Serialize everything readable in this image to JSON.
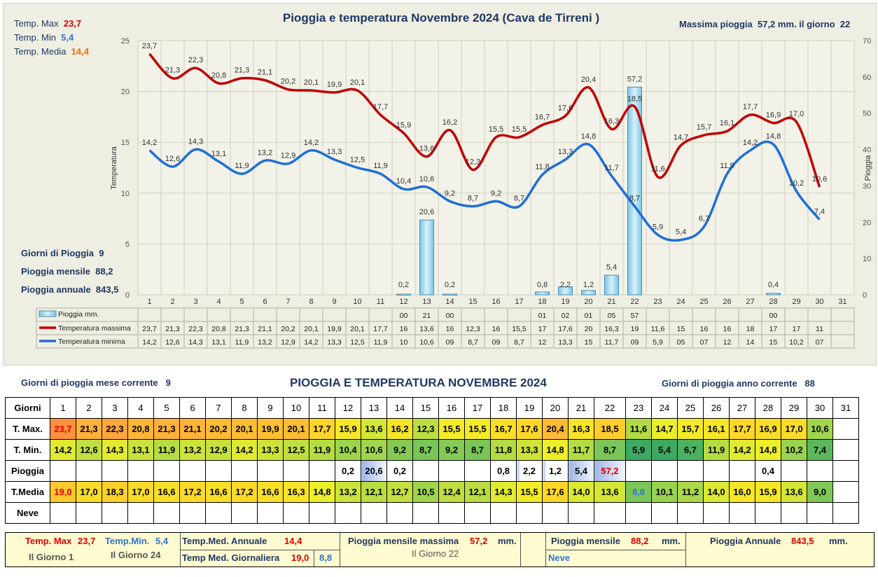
{
  "chart_title": "Pioggia e temperatura Novembre 2024 (Cava de Tirreni )",
  "top_right": {
    "label": "Massima pioggia",
    "value": "57,2 mm.",
    "day_label": "il giorno",
    "day": "22"
  },
  "temp_stats": [
    {
      "label": "Temp. Max",
      "value": "23,7"
    },
    {
      "label": "Temp. Min",
      "value": "5,4"
    },
    {
      "label": "Temp. Media",
      "value": "14,4"
    }
  ],
  "rain_stats": [
    {
      "label": "Giorni di Pioggia",
      "value": "9"
    },
    {
      "label": "Pioggia mensile",
      "value": "88,2"
    },
    {
      "label": "Pioggia annuale",
      "value": "843,5"
    }
  ],
  "chart_data": {
    "type": "line",
    "title": "Pioggia e temperatura Novembre 2024 (Cava de Tirreni )",
    "ylabel": "Temperatura",
    "y2label": "Pioggia",
    "ylim": [
      0,
      25
    ],
    "y2lim": [
      0,
      70
    ],
    "yticks": [
      "0",
      "5",
      "10",
      "15",
      "20",
      "25"
    ],
    "y2ticks": [
      "0",
      "10",
      "20",
      "30",
      "40",
      "50",
      "60",
      "70"
    ],
    "categories": [
      "1",
      "2",
      "3",
      "4",
      "5",
      "6",
      "7",
      "8",
      "9",
      "10",
      "11",
      "12",
      "13",
      "14",
      "15",
      "16",
      "17",
      "18",
      "19",
      "20",
      "21",
      "22",
      "23",
      "24",
      "25",
      "26",
      "27",
      "28",
      "29",
      "30",
      "31"
    ],
    "legend_position": "bottom-left",
    "grid": true,
    "series": [
      {
        "name": "Pioggia mm.",
        "type": "bar",
        "axis": "right",
        "color": "#9dd3ea",
        "values": [
          null,
          null,
          null,
          null,
          null,
          null,
          null,
          null,
          null,
          null,
          null,
          0.2,
          20.6,
          0.2,
          null,
          null,
          null,
          0.8,
          2.2,
          1.2,
          5.4,
          57.2,
          null,
          null,
          null,
          null,
          null,
          0.4,
          null,
          null,
          null
        ],
        "labels": [
          "",
          "",
          "",
          "",
          "",
          "",
          "",
          "",
          "",
          "",
          "",
          "0,2",
          "20,6",
          "0,2",
          "",
          "",
          "",
          "0,8",
          "2,2",
          "1,2",
          "5,4",
          "57,2",
          "",
          "",
          "",
          "",
          "",
          "0,4",
          "",
          "",
          ""
        ],
        "table_row": [
          "",
          "",
          "",
          "",
          "",
          "",
          "",
          "",
          "",
          "",
          "",
          "00",
          "21",
          "00",
          "",
          "",
          "",
          "01",
          "02",
          "01",
          "05",
          "57",
          "",
          "",
          "",
          "",
          "",
          "00",
          "",
          "",
          ""
        ]
      },
      {
        "name": "Temperatura massima",
        "type": "line",
        "axis": "left",
        "color": "#c00000",
        "values": [
          23.7,
          21.3,
          22.3,
          20.8,
          21.3,
          21.1,
          20.2,
          20.1,
          19.9,
          20.1,
          17.7,
          15.9,
          13.6,
          16.2,
          12.3,
          15.5,
          15.5,
          16.7,
          17.6,
          20.4,
          16.3,
          18.5,
          11.6,
          14.7,
          15.7,
          16.1,
          17.7,
          16.9,
          17.0,
          10.6,
          null
        ],
        "labels": [
          "23,7",
          "21,3",
          "22,3",
          "20,8",
          "21,3",
          "21,1",
          "20,2",
          "20,1",
          "19,9",
          "20,1",
          "17,7",
          "15,9",
          "13,6",
          "16,2",
          "12,3",
          "15,5",
          "15,5",
          "16,7",
          "17,6",
          "20,4",
          "16,3",
          "18,5",
          "11,6",
          "14,7",
          "15,7",
          "16,1",
          "17,7",
          "16,9",
          "17,0",
          "10,6",
          ""
        ],
        "table_row": [
          "23,7",
          "21,3",
          "22,3",
          "20,8",
          "21,3",
          "21,1",
          "20,2",
          "20,1",
          "19,9",
          "20,1",
          "17,7",
          "16",
          "13,6",
          "16",
          "12,3",
          "16",
          "15,5",
          "17",
          "17,6",
          "20",
          "16,3",
          "19",
          "11,6",
          "15",
          "16",
          "16",
          "18",
          "17",
          "17",
          "11",
          ""
        ]
      },
      {
        "name": "Temperatura minima",
        "type": "line",
        "axis": "left",
        "color": "#1f6fd8",
        "values": [
          14.2,
          12.6,
          14.3,
          13.1,
          11.9,
          13.2,
          12.9,
          14.2,
          13.3,
          12.5,
          11.9,
          10.4,
          10.6,
          9.2,
          8.7,
          9.2,
          8.7,
          11.8,
          13.3,
          14.8,
          11.7,
          8.7,
          5.9,
          5.4,
          6.7,
          11.9,
          14.2,
          14.8,
          10.2,
          7.4,
          null
        ],
        "labels": [
          "14,2",
          "12,6",
          "14,3",
          "13,1",
          "11,9",
          "13,2",
          "12,9",
          "14,2",
          "13,3",
          "12,5",
          "11,9",
          "10,4",
          "10,6",
          "9,2",
          "8,7",
          "9,2",
          "8,7",
          "11,8",
          "13,3",
          "14,8",
          "11,7",
          "8,7",
          "5,9",
          "5,4",
          "6,7",
          "11,9",
          "14,2",
          "14,8",
          "10,2",
          "7,4",
          ""
        ],
        "table_row": [
          "14,2",
          "12,6",
          "14,3",
          "13,1",
          "11,9",
          "13,2",
          "12,9",
          "14,2",
          "13,3",
          "12,5",
          "11,9",
          "10",
          "10,6",
          "09",
          "8,7",
          "09",
          "8,7",
          "12",
          "13,3",
          "15",
          "11,7",
          "09",
          "5,9",
          "05",
          "07",
          "12",
          "14",
          "15",
          "10,2",
          "07",
          ""
        ]
      }
    ]
  },
  "table": {
    "title": "PIOGGIA E TEMPERATURA NOVEMBRE 2024",
    "left_label": "Giorni di pioggia mese corrente",
    "left_value": "9",
    "right_label": "Giorni di pioggia anno corrente",
    "right_value": "88",
    "day_header": "Giorni",
    "days": [
      "1",
      "2",
      "3",
      "4",
      "5",
      "6",
      "7",
      "8",
      "9",
      "10",
      "11",
      "12",
      "13",
      "14",
      "15",
      "16",
      "17",
      "18",
      "19",
      "20",
      "21",
      "22",
      "23",
      "24",
      "25",
      "26",
      "27",
      "28",
      "29",
      "30",
      "31"
    ],
    "rows": [
      {
        "label": "T. Max.",
        "values": [
          "23,7",
          "21,3",
          "22,3",
          "20,8",
          "21,3",
          "21,1",
          "20,2",
          "20,1",
          "19,9",
          "20,1",
          "17,7",
          "15,9",
          "13,6",
          "16,2",
          "12,3",
          "15,5",
          "15,5",
          "16,7",
          "17,6",
          "20,4",
          "16,3",
          "18,5",
          "11,6",
          "14,7",
          "15,7",
          "16,1",
          "17,7",
          "16,9",
          "17,0",
          "10,6",
          ""
        ]
      },
      {
        "label": "T. Min.",
        "values": [
          "14,2",
          "12,6",
          "14,3",
          "13,1",
          "11,9",
          "13,2",
          "12,9",
          "14,2",
          "13,3",
          "12,5",
          "11,9",
          "10,4",
          "10,6",
          "9,2",
          "8,7",
          "9,2",
          "8,7",
          "11,8",
          "13,3",
          "14,8",
          "11,7",
          "8,7",
          "5,9",
          "5,4",
          "6,7",
          "11,9",
          "14,2",
          "14,8",
          "10,2",
          "7,4",
          ""
        ]
      },
      {
        "label": "Pioggia",
        "values": [
          "",
          "",
          "",
          "",
          "",
          "",
          "",
          "",
          "",
          "",
          "",
          "0,2",
          "20,6",
          "0,2",
          "",
          "",
          "",
          "0,8",
          "2,2",
          "1,2",
          "5,4",
          "57,2",
          "",
          "",
          "",
          "",
          "",
          "0,4",
          "",
          "",
          ""
        ]
      },
      {
        "label": "T.Media",
        "values": [
          "19,0",
          "17,0",
          "18,3",
          "17,0",
          "16,6",
          "17,2",
          "16,6",
          "17,2",
          "16,6",
          "16,3",
          "14,8",
          "13,2",
          "12,1",
          "12,7",
          "10,5",
          "12,4",
          "12,1",
          "14,3",
          "15,5",
          "17,6",
          "14,0",
          "13,6",
          "8,8",
          "10,1",
          "11,2",
          "14,0",
          "16,0",
          "15,9",
          "13,6",
          "9,0",
          ""
        ]
      },
      {
        "label": "Neve",
        "values": [
          "",
          "",
          "",
          "",
          "",
          "",
          "",
          "",
          "",
          "",
          "",
          "",
          "",
          "",
          "",
          "",
          "",
          "",
          "",
          "",
          "",
          "",
          "",
          "",
          "",
          "",
          "",
          "",
          "",
          "",
          ""
        ]
      }
    ]
  },
  "summary": {
    "tmax_label": "Temp. Max",
    "tmax_value": "23,7",
    "tmin_label": "Temp.Min.",
    "tmin_value": "5,4",
    "tmax_day": "Il Giorno   1",
    "tmin_day": "Il Giorno 24",
    "annual_label": "Temp.Med. Annuale",
    "annual_value": "14,4",
    "daily_label": "Temp Med. Giornaliera",
    "daily_max": "19,0",
    "daily_min": "8,8",
    "rainmax_label": "Pioggia mensile massima",
    "rainmax_value": "57,2",
    "rainmax_unit": "mm.",
    "rainmax_day": "Il Giorno 22",
    "rainmonth_label": "Pioggia mensile",
    "rainmonth_value": "88,2",
    "rainmonth_unit": "mm.",
    "neve_label": "Neve",
    "rainyear_label": "Pioggia Annuale",
    "rainyear_value": "843,5",
    "rainyear_unit": "mm."
  }
}
